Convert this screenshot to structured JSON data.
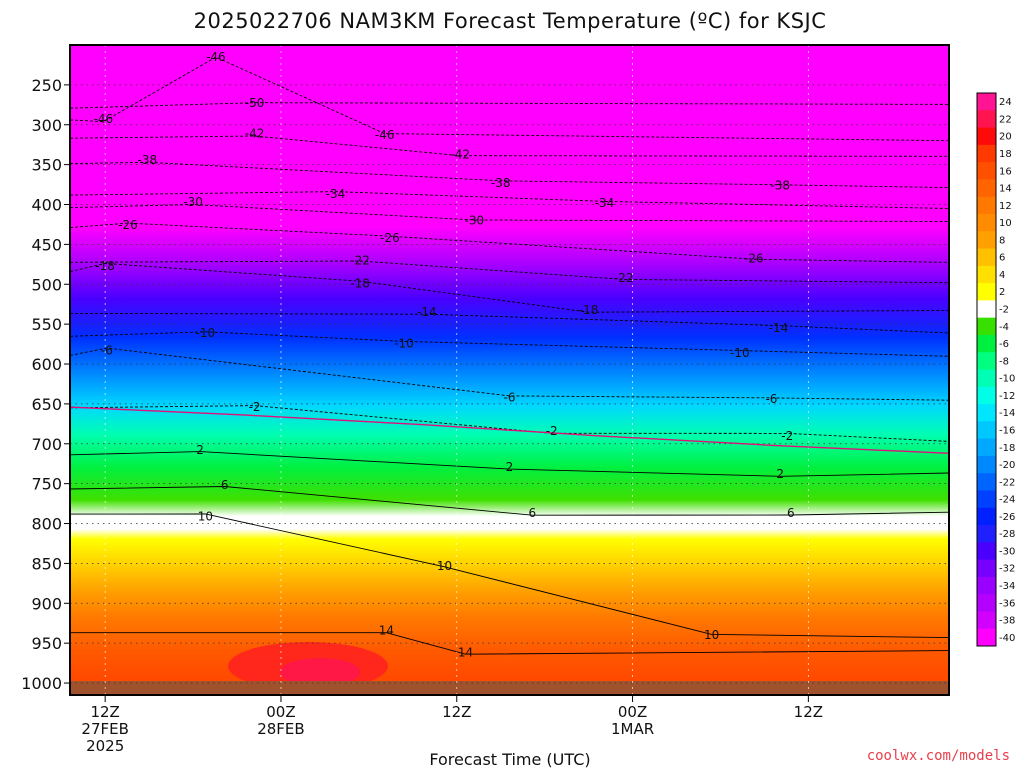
{
  "chart_data": {
    "type": "contour",
    "title": "2025022706 NAM3KM Forecast Temperature (ºC) for KSJC",
    "xlabel": "Forecast Time (UTC)",
    "ylabel": "",
    "pressure_levels": [
      250,
      300,
      350,
      400,
      450,
      500,
      550,
      600,
      650,
      700,
      750,
      800,
      850,
      900,
      950,
      1000
    ],
    "y_ticks": [
      "250",
      "300",
      "350",
      "400",
      "450",
      "500",
      "550",
      "600",
      "650",
      "700",
      "750",
      "800",
      "850",
      "900",
      "950",
      "1000"
    ],
    "ylim": [
      200,
      1015
    ],
    "xlim_hours": [
      4,
      54
    ],
    "x_ticks": [
      {
        "hour": 6,
        "line1": "12Z",
        "line2": "27FEB",
        "line3": "2025"
      },
      {
        "hour": 16,
        "line1": "00Z",
        "line2": "28FEB",
        "line3": ""
      },
      {
        "hour": 26,
        "line1": "12Z",
        "line2": "",
        "line3": ""
      },
      {
        "hour": 36,
        "line1": "00Z",
        "line2": "1MAR",
        "line3": ""
      },
      {
        "hour": 46,
        "line1": "12Z",
        "line2": "",
        "line3": ""
      }
    ],
    "grid": true,
    "colorbar": {
      "position": "right",
      "labels": [
        "24",
        "22",
        "20",
        "18",
        "16",
        "14",
        "12",
        "10",
        "8",
        "6",
        "4",
        "2",
        "-2",
        "-4",
        "-6",
        "-8",
        "-10",
        "-12",
        "-14",
        "-16",
        "-18",
        "-20",
        "-22",
        "-24",
        "-26",
        "-28",
        "-30",
        "-32",
        "-34",
        "-36",
        "-38",
        "-40"
      ],
      "colors": [
        "#ff1493",
        "#ff1450",
        "#ff0a0a",
        "#ff3a00",
        "#ff5000",
        "#ff6400",
        "#ff7800",
        "#ff8c00",
        "#ffa000",
        "#ffc000",
        "#ffe000",
        "#ffff00",
        "#ffffff",
        "#38e000",
        "#00f040",
        "#00ff80",
        "#00ffb4",
        "#00ffe6",
        "#00e6ff",
        "#00c8ff",
        "#00a8ff",
        "#0088ff",
        "#0064ff",
        "#0040ff",
        "#0020ff",
        "#2020ff",
        "#4a00ff",
        "#7800ff",
        "#9a00ff",
        "#b400ff",
        "#d200ff",
        "#ff00ff"
      ]
    },
    "contour_labels": [
      {
        "text": "-46",
        "hour": 12.3,
        "p": 215
      },
      {
        "text": "-50",
        "hour": 14.5,
        "p": 273
      },
      {
        "text": "-46",
        "hour": 5.9,
        "p": 293
      },
      {
        "text": "-42",
        "hour": 14.5,
        "p": 311
      },
      {
        "text": "-46",
        "hour": 21.9,
        "p": 313
      },
      {
        "text": "-42",
        "hour": 26.2,
        "p": 337
      },
      {
        "text": "-38",
        "hour": 8.4,
        "p": 344
      },
      {
        "text": "-38",
        "hour": 28.5,
        "p": 373
      },
      {
        "text": "-38",
        "hour": 44.4,
        "p": 376
      },
      {
        "text": "-34",
        "hour": 19.1,
        "p": 387
      },
      {
        "text": "-30",
        "hour": 11.0,
        "p": 397
      },
      {
        "text": "-34",
        "hour": 34.4,
        "p": 398
      },
      {
        "text": "-30",
        "hour": 27.0,
        "p": 420
      },
      {
        "text": "-26",
        "hour": 7.3,
        "p": 426
      },
      {
        "text": "-26",
        "hour": 22.2,
        "p": 442
      },
      {
        "text": "-22",
        "hour": 20.5,
        "p": 470
      },
      {
        "text": "-26",
        "hour": 42.9,
        "p": 468
      },
      {
        "text": "-18",
        "hour": 6.0,
        "p": 477
      },
      {
        "text": "-22",
        "hour": 35.5,
        "p": 492
      },
      {
        "text": "-18",
        "hour": 20.5,
        "p": 499
      },
      {
        "text": "-14",
        "hour": 24.3,
        "p": 535
      },
      {
        "text": "-18",
        "hour": 33.5,
        "p": 532
      },
      {
        "text": "-14",
        "hour": 44.3,
        "p": 555
      },
      {
        "text": "-10",
        "hour": 11.7,
        "p": 561
      },
      {
        "text": "-10",
        "hour": 23.0,
        "p": 574
      },
      {
        "text": "-6",
        "hour": 6.1,
        "p": 583
      },
      {
        "text": "-10",
        "hour": 42.1,
        "p": 586
      },
      {
        "text": "-6",
        "hour": 29.0,
        "p": 642
      },
      {
        "text": "-6",
        "hour": 43.9,
        "p": 644
      },
      {
        "text": "-2",
        "hour": 14.5,
        "p": 654
      },
      {
        "text": "-2",
        "hour": 31.4,
        "p": 684
      },
      {
        "text": "-2",
        "hour": 44.8,
        "p": 690
      },
      {
        "text": "2",
        "hour": 11.4,
        "p": 708
      },
      {
        "text": "2",
        "hour": 29.0,
        "p": 729
      },
      {
        "text": "2",
        "hour": 44.4,
        "p": 738
      },
      {
        "text": "6",
        "hour": 12.8,
        "p": 752
      },
      {
        "text": "6",
        "hour": 30.3,
        "p": 787
      },
      {
        "text": "6",
        "hour": 45.0,
        "p": 787
      },
      {
        "text": "10",
        "hour": 11.7,
        "p": 791
      },
      {
        "text": "10",
        "hour": 25.3,
        "p": 853
      },
      {
        "text": "10",
        "hour": 40.5,
        "p": 940
      },
      {
        "text": "14",
        "hour": 22.0,
        "p": 934
      },
      {
        "text": "14",
        "hour": 26.5,
        "p": 962
      }
    ]
  },
  "footer": {
    "credit": "coolwx.com/models"
  }
}
